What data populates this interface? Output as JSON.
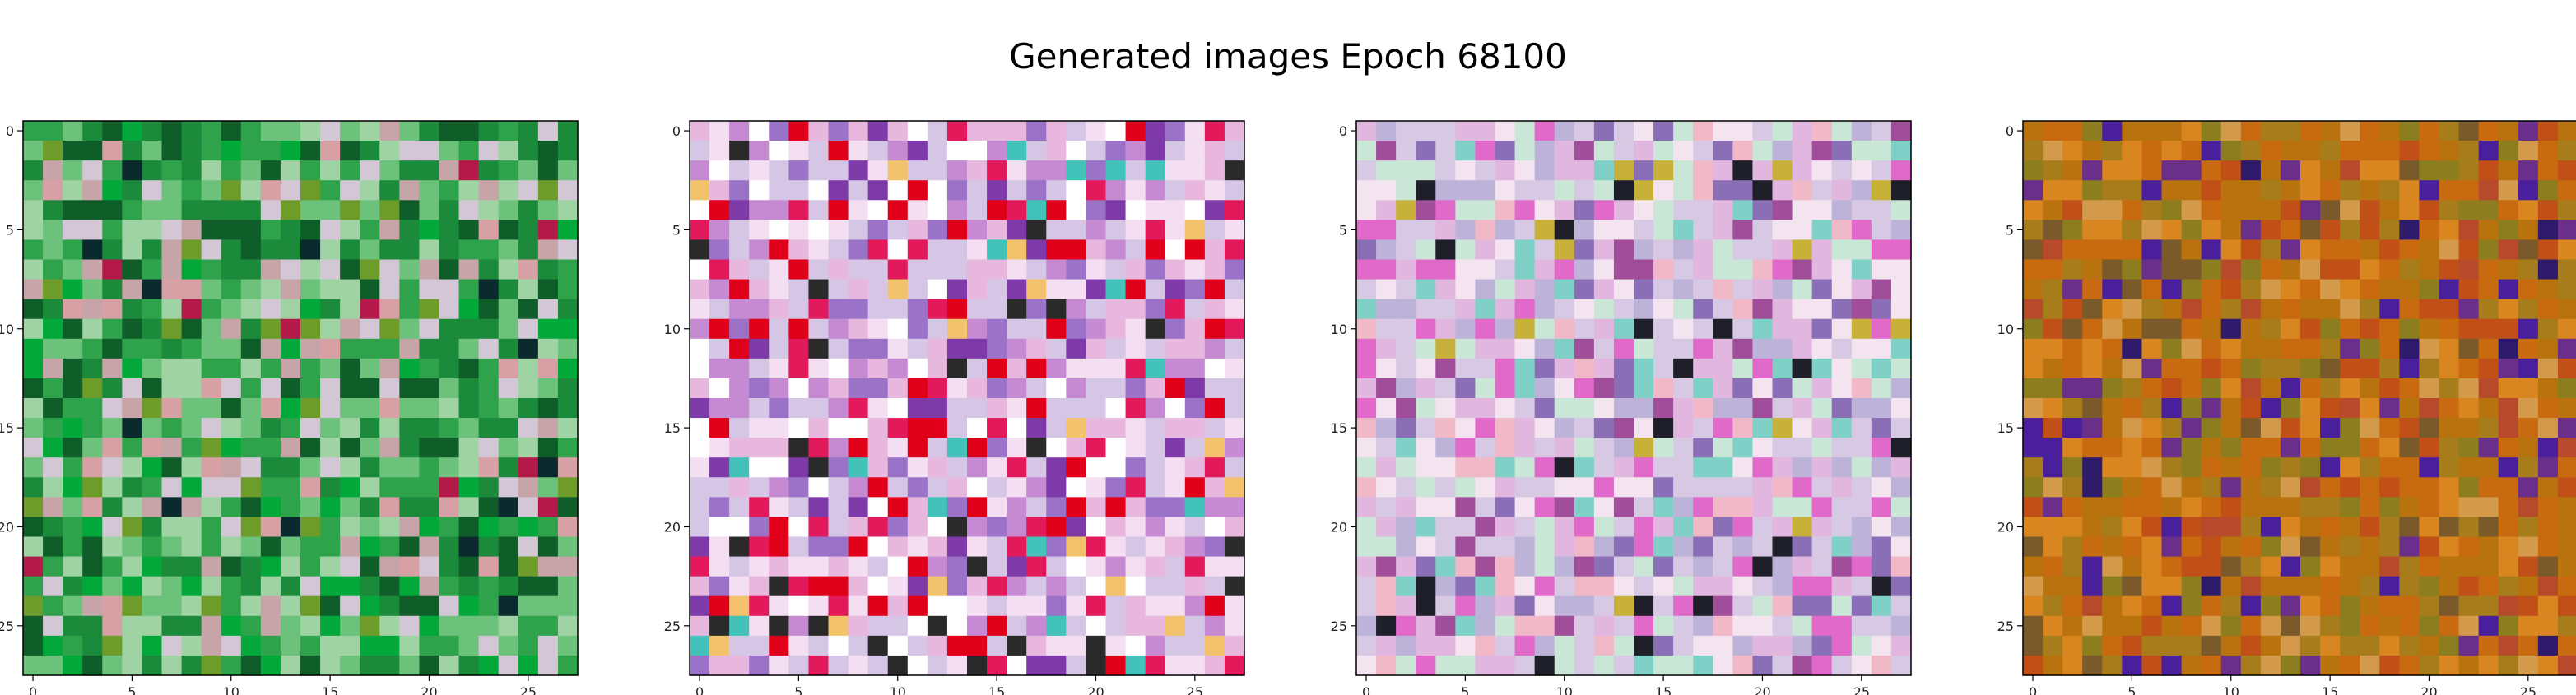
{
  "figure": {
    "title": "Generated images Epoch 68100"
  },
  "chart_data": [
    {
      "type": "heatmap",
      "grid_size": 28,
      "xlim": [
        0,
        27
      ],
      "ylim": [
        27,
        0
      ],
      "xticks": [
        "0",
        "5",
        "10",
        "15",
        "20",
        "25"
      ],
      "yticks": [
        "0",
        "5",
        "10",
        "15",
        "20",
        "25"
      ],
      "palette": [
        "#1c8a3b",
        "#2fa24c",
        "#6cc27a",
        "#9fd3a3",
        "#d3c7d6",
        "#c7a4a8",
        "#0f5e2a",
        "#02a93a",
        "#6e9c2b",
        "#d7a0a4",
        "#b31a4a",
        "#0b2a2e"
      ],
      "weights": [
        14,
        14,
        12,
        10,
        8,
        5,
        10,
        6,
        4,
        4,
        1,
        1
      ],
      "seed": 11
    },
    {
      "type": "heatmap",
      "grid_size": 28,
      "xlim": [
        0,
        27
      ],
      "ylim": [
        27,
        0
      ],
      "xticks": [
        "0",
        "5",
        "10",
        "15",
        "20",
        "25"
      ],
      "yticks": [
        "0",
        "5",
        "10",
        "15",
        "20",
        "25"
      ],
      "palette": [
        "#d6c6e6",
        "#e8b7de",
        "#f3dff1",
        "#ffffff",
        "#c58ad2",
        "#9a73c8",
        "#e2195b",
        "#e0001a",
        "#2a2a2a",
        "#7d3aa8",
        "#42c2b8",
        "#f2c26c"
      ],
      "weights": [
        14,
        12,
        12,
        8,
        8,
        6,
        6,
        6,
        3,
        4,
        3,
        2
      ],
      "seed": 23
    },
    {
      "type": "heatmap",
      "grid_size": 28,
      "xlim": [
        0,
        27
      ],
      "ylim": [
        27,
        0
      ],
      "xticks": [
        "0",
        "5",
        "10",
        "15",
        "20",
        "25"
      ],
      "yticks": [
        "0",
        "5",
        "10",
        "15",
        "20",
        "25"
      ],
      "palette": [
        "#d7c9e3",
        "#e2b7df",
        "#c9e6d6",
        "#f4e4f0",
        "#bdb3d8",
        "#e069c9",
        "#8b6fb6",
        "#7fd0c6",
        "#1f1f2a",
        "#f1b8c8",
        "#c7b13a",
        "#a04d9a"
      ],
      "weights": [
        14,
        12,
        10,
        12,
        8,
        6,
        6,
        5,
        2,
        5,
        2,
        4
      ],
      "seed": 37
    },
    {
      "type": "heatmap",
      "grid_size": 28,
      "xlim": [
        0,
        27
      ],
      "ylim": [
        27,
        0
      ],
      "xticks": [
        "0",
        "5",
        "10",
        "15",
        "20",
        "25"
      ],
      "yticks": [
        "0",
        "5",
        "10",
        "15",
        "20",
        "25"
      ],
      "palette": [
        "#c86a0f",
        "#b8720e",
        "#a77d1c",
        "#d98520",
        "#8c7d1e",
        "#6a2f8a",
        "#4a1f9c",
        "#c05018",
        "#d29a4a",
        "#7a5a2a",
        "#2e1a6a",
        "#b64a2a"
      ],
      "weights": [
        16,
        14,
        12,
        12,
        8,
        5,
        4,
        8,
        6,
        5,
        2,
        4
      ],
      "seed": 53
    }
  ]
}
